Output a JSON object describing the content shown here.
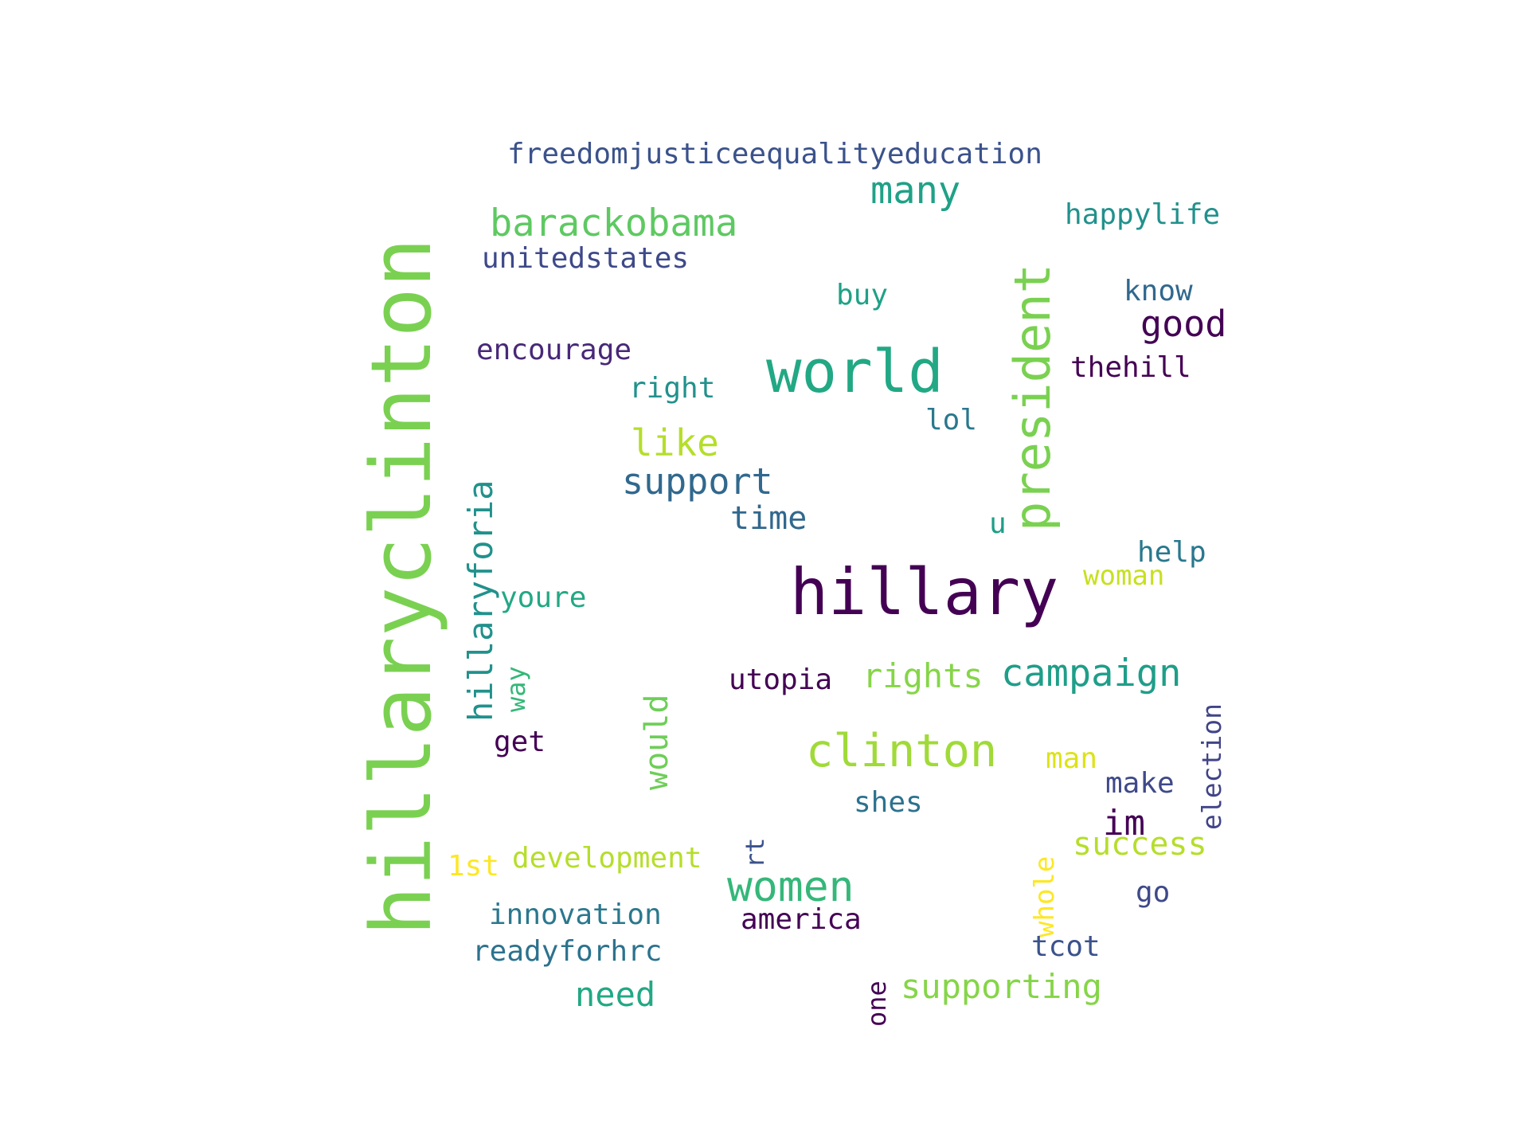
{
  "words": [
    {
      "id": "hillaryclinton",
      "text": "hillaryclinton",
      "color": "#7ad151"
    },
    {
      "id": "hillary",
      "text": "hillary",
      "color": "#440154"
    },
    {
      "id": "world",
      "text": "world",
      "color": "#22a884"
    },
    {
      "id": "president",
      "text": "president",
      "color": "#7ad151"
    },
    {
      "id": "clinton",
      "text": "clinton",
      "color": "#a0da39"
    },
    {
      "id": "women",
      "text": "women",
      "color": "#35b779"
    },
    {
      "id": "freedomjusticeequalityeducation",
      "text": "freedomjusticeequalityeducation",
      "color": "#3b528b"
    },
    {
      "id": "barackobama",
      "text": "barackobama",
      "color": "#5ec962"
    },
    {
      "id": "many",
      "text": "many",
      "color": "#1fa187"
    },
    {
      "id": "happylife",
      "text": "happylife",
      "color": "#21918c"
    },
    {
      "id": "unitedstates",
      "text": "unitedstates",
      "color": "#3e4989"
    },
    {
      "id": "buy",
      "text": "buy",
      "color": "#1fa187"
    },
    {
      "id": "know",
      "text": "know",
      "color": "#31688e"
    },
    {
      "id": "good",
      "text": "good",
      "color": "#440154"
    },
    {
      "id": "encourage",
      "text": "encourage",
      "color": "#482878"
    },
    {
      "id": "thehill",
      "text": "thehill",
      "color": "#440154"
    },
    {
      "id": "right",
      "text": "right",
      "color": "#21918c"
    },
    {
      "id": "lol",
      "text": "lol",
      "color": "#2a788e"
    },
    {
      "id": "hillaryforia",
      "text": "hillaryforia",
      "color": "#21918c"
    },
    {
      "id": "like",
      "text": "like",
      "color": "#b5de2b"
    },
    {
      "id": "support",
      "text": "support",
      "color": "#31688e"
    },
    {
      "id": "time",
      "text": "time",
      "color": "#31688e"
    },
    {
      "id": "u",
      "text": "u",
      "color": "#1f9e89"
    },
    {
      "id": "help",
      "text": "help",
      "color": "#2a788e"
    },
    {
      "id": "woman",
      "text": "woman",
      "color": "#c8e020"
    },
    {
      "id": "youre",
      "text": "youre",
      "color": "#22a884"
    },
    {
      "id": "way",
      "text": "way",
      "color": "#35b779"
    },
    {
      "id": "would",
      "text": "would",
      "color": "#6ece58"
    },
    {
      "id": "utopia",
      "text": "utopia",
      "color": "#440154"
    },
    {
      "id": "rights",
      "text": "rights",
      "color": "#86d549"
    },
    {
      "id": "campaign",
      "text": "campaign",
      "color": "#1f9e89"
    },
    {
      "id": "election",
      "text": "election",
      "color": "#414487"
    },
    {
      "id": "get",
      "text": "get",
      "color": "#440154"
    },
    {
      "id": "man",
      "text": "man",
      "color": "#dde318"
    },
    {
      "id": "make",
      "text": "make",
      "color": "#3e4989"
    },
    {
      "id": "shes",
      "text": "shes",
      "color": "#2c728e"
    },
    {
      "id": "im",
      "text": "im",
      "color": "#440154"
    },
    {
      "id": "rt",
      "text": "rt",
      "color": "#3b528b"
    },
    {
      "id": "whole",
      "text": "whole",
      "color": "#fde725"
    },
    {
      "id": "success",
      "text": "success",
      "color": "#b5de2b"
    },
    {
      "id": "1st",
      "text": "1st",
      "color": "#fde725"
    },
    {
      "id": "development",
      "text": "development",
      "color": "#b5de2b"
    },
    {
      "id": "go",
      "text": "go",
      "color": "#3e4989"
    },
    {
      "id": "innovation",
      "text": "innovation",
      "color": "#2a788e"
    },
    {
      "id": "america",
      "text": "america",
      "color": "#440154"
    },
    {
      "id": "tcot",
      "text": "tcot",
      "color": "#3b528b"
    },
    {
      "id": "readyforhrc",
      "text": "readyforhrc",
      "color": "#2c728e"
    },
    {
      "id": "one",
      "text": "one",
      "color": "#440154"
    },
    {
      "id": "supporting",
      "text": "supporting",
      "color": "#86d549"
    },
    {
      "id": "need",
      "text": "need",
      "color": "#22a884"
    }
  ]
}
